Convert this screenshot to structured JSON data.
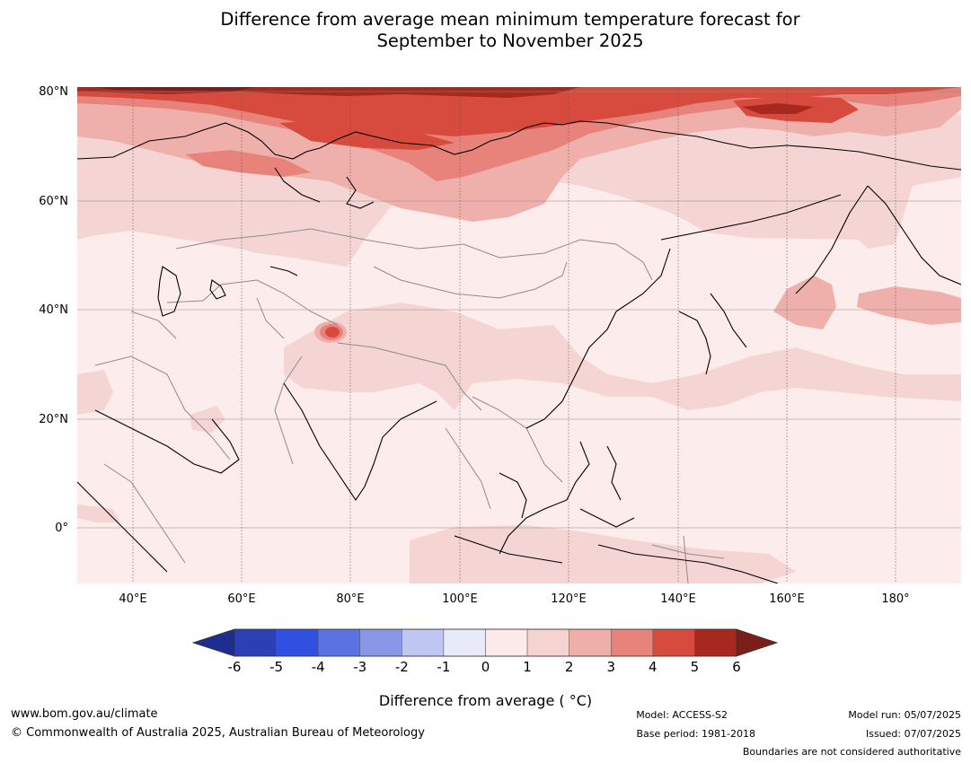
{
  "title": {
    "line1": "Difference from average mean minimum temperature forecast for",
    "line2": "September to November 2025"
  },
  "map": {
    "region": "Asia",
    "lat_labels": [
      "80°N",
      "60°N",
      "40°N",
      "20°N",
      "0°"
    ],
    "lon_labels": [
      "40°E",
      "60°E",
      "80°E",
      "100°E",
      "120°E",
      "140°E",
      "160°E",
      "180°"
    ],
    "anomaly_field_colors": {
      "above_4_to_6": "#a8281e",
      "above_3_to_4": "#d74a3e",
      "above_2_to_3": "#e8837b",
      "above_1_to_2": "#efb0ab",
      "above_0_to_1": "#f5d5d3",
      "above_0_light": "#fceceb"
    },
    "coastline_color": "#000000",
    "border_color": "#8c8c8c"
  },
  "colorbar": {
    "label": "Difference from average ( °C)",
    "ticks": [
      "-6",
      "-5",
      "-4",
      "-3",
      "-2",
      "-1",
      "0",
      "1",
      "2",
      "3",
      "4",
      "5",
      "6"
    ],
    "colors": [
      "#1e2d8f",
      "#2a40b4",
      "#2f50e0",
      "#5b73e2",
      "#8897e8",
      "#bfc6f2",
      "#e8eafa",
      "#fdeaea",
      "#f5d3d1",
      "#eeafab",
      "#e8837b",
      "#d74a3e",
      "#a8281e",
      "#7a1e19"
    ]
  },
  "footer": {
    "website": "www.bom.gov.au/climate",
    "copyright": "© Commonwealth of Australia 2025, Australian Bureau of Meteorology",
    "model": "Model: ACCESS-S2",
    "base_period": "Base period: 1981-2018",
    "model_run": "Model run: 05/07/2025",
    "issued": "Issued: 07/07/2025",
    "disclaimer": "Boundaries are not considered authoritative"
  }
}
